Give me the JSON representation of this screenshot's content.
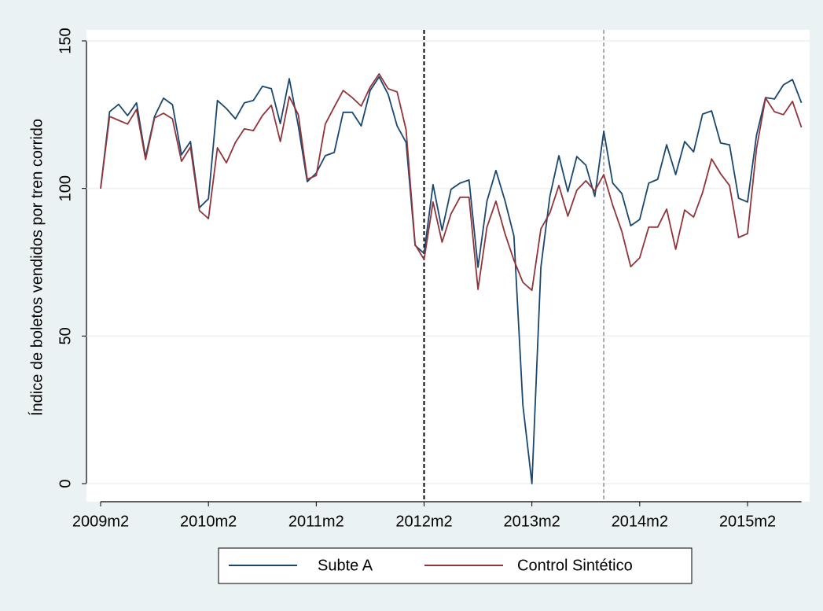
{
  "chart_data": {
    "type": "line",
    "y_label": "Índice de boletos vendidos por tren corrido",
    "categories": [
      "2009m2",
      null,
      null,
      null,
      null,
      null,
      null,
      null,
      null,
      null,
      null,
      null,
      "2010m2",
      null,
      null,
      null,
      null,
      null,
      null,
      null,
      null,
      null,
      null,
      null,
      "2011m2",
      null,
      null,
      null,
      null,
      null,
      null,
      null,
      null,
      null,
      null,
      null,
      "2012m2",
      null,
      null,
      null,
      null,
      null,
      null,
      null,
      null,
      null,
      null,
      null,
      "2013m2",
      null,
      null,
      null,
      null,
      null,
      null,
      null,
      null,
      null,
      null,
      null,
      "2014m2",
      null,
      null,
      null,
      null,
      null,
      null,
      null,
      null,
      null,
      null,
      null,
      "2015m2",
      null,
      null,
      null,
      null,
      null,
      null
    ],
    "series": [
      {
        "name": "Subte A",
        "color": "#1a476f",
        "values": [
          100,
          126,
          128.5,
          124.7,
          129,
          110.6,
          124.4,
          130.6,
          128.4,
          111.4,
          115.9,
          93.5,
          96.5,
          129.8,
          127.1,
          123.6,
          129,
          129.8,
          134.6,
          133.8,
          122,
          137.2,
          121.2,
          102.3,
          105.2,
          111.1,
          112.2,
          125.8,
          125.8,
          121.2,
          133.2,
          137.8,
          131.9,
          121.2,
          115.6,
          80.7,
          78,
          101.3,
          85.8,
          99.7,
          101.8,
          102.9,
          73.3,
          95.7,
          106.1,
          95.9,
          83.9,
          26.6,
          0,
          73.3,
          97.3,
          111.1,
          98.9,
          110.8,
          107.9,
          97.3,
          119.4,
          101.8,
          98.3,
          87.4,
          89.5,
          101.8,
          103.1,
          114.8,
          104.7,
          115.9,
          112.4,
          125.2,
          126.3,
          115.4,
          114.8,
          96.7,
          95.4,
          118,
          130.8,
          130.3,
          135.1,
          136.9,
          129
        ]
      },
      {
        "name": "Control Sintético",
        "color": "#90353b",
        "values": [
          100,
          124.4,
          123.1,
          121.8,
          126.8,
          109.8,
          123.9,
          125.5,
          123.6,
          109.2,
          114,
          92.5,
          89.8,
          113.8,
          108.7,
          115.6,
          120.2,
          119.6,
          124.7,
          128.2,
          115.9,
          131.1,
          125,
          103.1,
          104.4,
          121.8,
          127.6,
          133.2,
          130.8,
          127.9,
          134.3,
          138.8,
          133.8,
          132.7,
          119.9,
          81,
          75.9,
          95.4,
          81.8,
          91.4,
          97,
          97,
          65.8,
          86.9,
          95.7,
          84.7,
          75.7,
          68.2,
          65.5,
          86.3,
          91.7,
          101,
          90.6,
          99.4,
          102.6,
          99.1,
          104.7,
          94.3,
          85.5,
          73.5,
          76.5,
          86.9,
          86.9,
          93,
          79.4,
          92.7,
          90.3,
          98.6,
          110,
          105,
          101,
          83.4,
          84.7,
          113.5,
          130.6,
          126,
          125,
          129.5,
          120.7
        ]
      }
    ],
    "ylim": [
      0,
      150
    ],
    "yticks": [
      0,
      50,
      100,
      150
    ],
    "grid": true,
    "reference_lines": [
      {
        "category_index": 36,
        "color": "#000000"
      },
      {
        "category_index": 56,
        "color": "#aaaaaa"
      }
    ],
    "legend": "bottom"
  }
}
